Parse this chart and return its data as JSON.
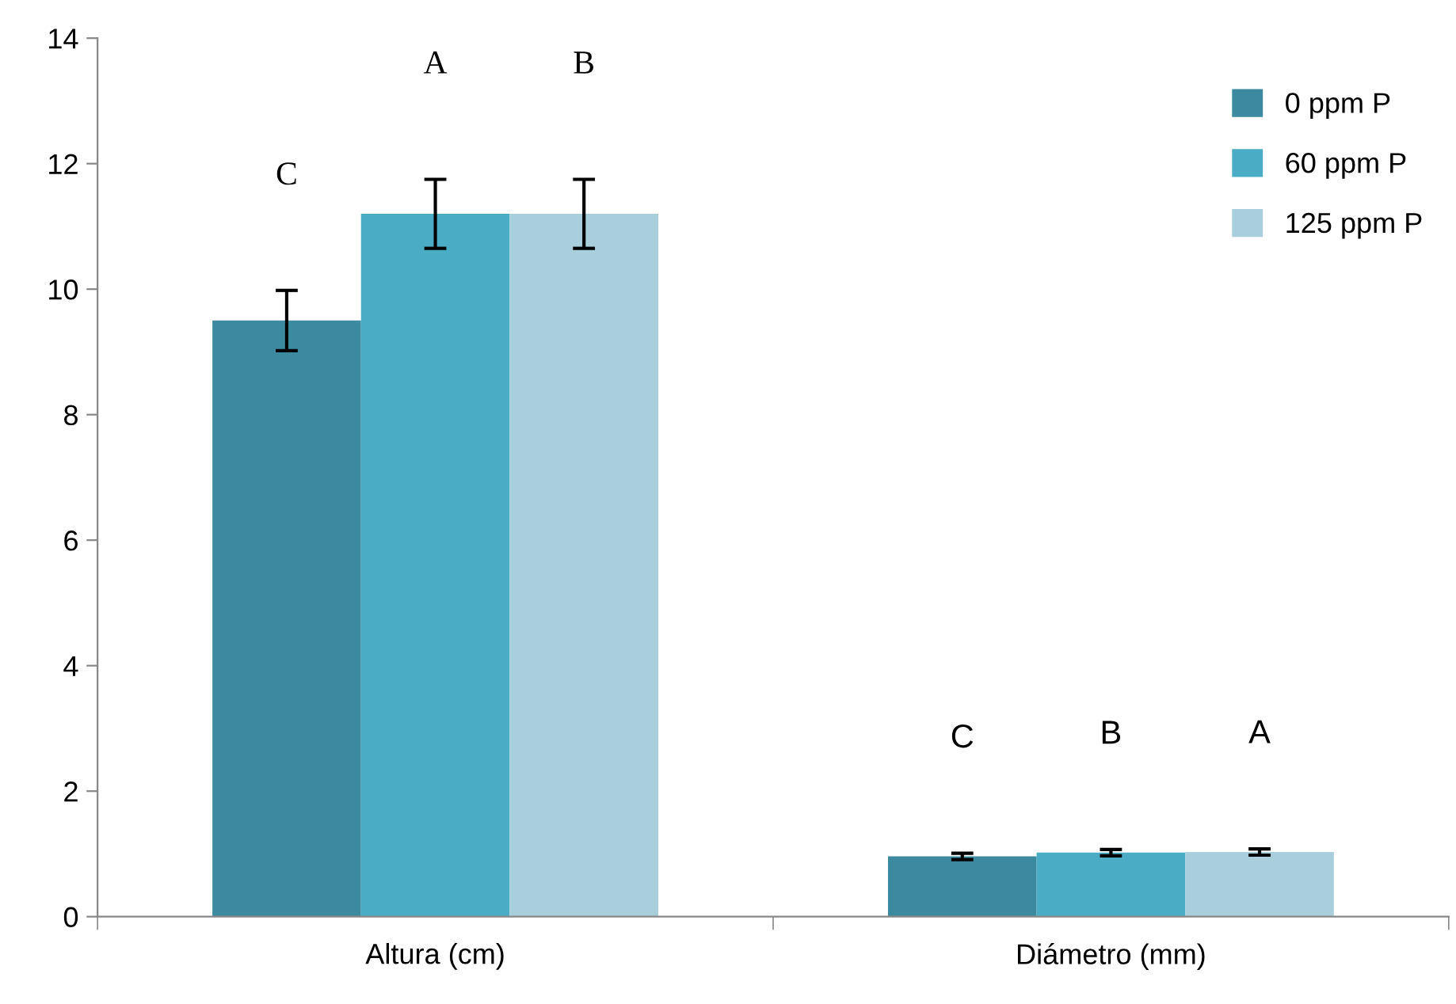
{
  "chart_data": {
    "type": "bar",
    "categories": [
      "Altura (cm)",
      "Diámetro (mm)"
    ],
    "series": [
      {
        "name": "0 ppm P",
        "color": "#3c8aa0",
        "values": [
          9.5,
          0.96
        ],
        "errors": [
          0.48,
          0.05
        ]
      },
      {
        "name": "60 ppm P",
        "color": "#4bacc6",
        "values": [
          11.2,
          1.02
        ],
        "errors": [
          0.55,
          0.05
        ]
      },
      {
        "name": "125 ppm P",
        "color": "#a9cfdc",
        "values": [
          11.2,
          1.03
        ],
        "errors": [
          0.55,
          0.05
        ]
      }
    ],
    "annotations": [
      "C",
      "A",
      "B",
      "C",
      "B",
      "A"
    ],
    "ylim": [
      0,
      14
    ],
    "yticks": [
      0,
      2,
      4,
      6,
      8,
      10,
      12,
      14
    ],
    "grid": false,
    "legend": "top right"
  }
}
